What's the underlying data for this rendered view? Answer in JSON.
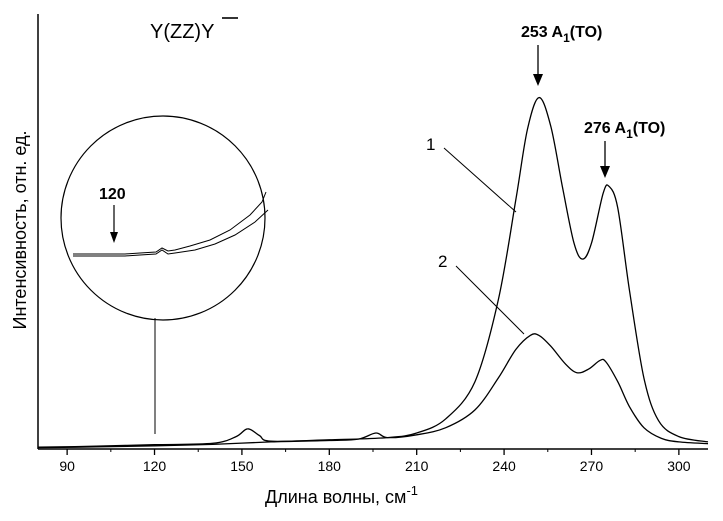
{
  "chart_data": {
    "type": "line",
    "title": "Y(ZZ)Y",
    "xlabel": "Длина волны, см",
    "xlabel_superscript": "-1",
    "ylabel": "Интенсивность, отн. ед.",
    "xlim": [
      80,
      310
    ],
    "ylim": [
      0,
      1
    ],
    "x_ticks": [
      90,
      120,
      150,
      180,
      210,
      240,
      270,
      300
    ],
    "y_ticks_labeled": false,
    "grid": false,
    "series": [
      {
        "name": "1",
        "points": [
          [
            80,
            0.005
          ],
          [
            100,
            0.008
          ],
          [
            120,
            0.012
          ],
          [
            140,
            0.016
          ],
          [
            148,
            0.035
          ],
          [
            152,
            0.057
          ],
          [
            156,
            0.038
          ],
          [
            160,
            0.022
          ],
          [
            180,
            0.026
          ],
          [
            200,
            0.032
          ],
          [
            210,
            0.045
          ],
          [
            220,
            0.085
          ],
          [
            230,
            0.19
          ],
          [
            238,
            0.42
          ],
          [
            244,
            0.7
          ],
          [
            248,
            0.9
          ],
          [
            252,
            0.99
          ],
          [
            256,
            0.91
          ],
          [
            260,
            0.74
          ],
          [
            264,
            0.58
          ],
          [
            267,
            0.535
          ],
          [
            270,
            0.58
          ],
          [
            274,
            0.72
          ],
          [
            276,
            0.74
          ],
          [
            279,
            0.68
          ],
          [
            283,
            0.45
          ],
          [
            288,
            0.2
          ],
          [
            293,
            0.08
          ],
          [
            300,
            0.035
          ],
          [
            310,
            0.02
          ]
        ]
      },
      {
        "name": "2",
        "points": [
          [
            80,
            0.004
          ],
          [
            100,
            0.006
          ],
          [
            120,
            0.009
          ],
          [
            140,
            0.013
          ],
          [
            160,
            0.02
          ],
          [
            180,
            0.024
          ],
          [
            190,
            0.028
          ],
          [
            196,
            0.045
          ],
          [
            200,
            0.032
          ],
          [
            210,
            0.04
          ],
          [
            220,
            0.06
          ],
          [
            230,
            0.11
          ],
          [
            238,
            0.2
          ],
          [
            244,
            0.28
          ],
          [
            249,
            0.32
          ],
          [
            252,
            0.32
          ],
          [
            256,
            0.29
          ],
          [
            261,
            0.24
          ],
          [
            265,
            0.215
          ],
          [
            269,
            0.225
          ],
          [
            273,
            0.25
          ],
          [
            275,
            0.245
          ],
          [
            279,
            0.19
          ],
          [
            283,
            0.12
          ],
          [
            288,
            0.06
          ],
          [
            294,
            0.03
          ],
          [
            300,
            0.02
          ],
          [
            310,
            0.015
          ]
        ]
      }
    ],
    "annotations": [
      {
        "text": "253 A",
        "sub": "1",
        "suffix": "(TO)",
        "x": 253
      },
      {
        "text": "276 A",
        "sub": "1",
        "suffix": "(TO)",
        "x": 276
      },
      {
        "text": "1",
        "target_series": "1"
      },
      {
        "text": "2",
        "target_series": "2"
      },
      {
        "text": "120",
        "x": 120,
        "note": "inset magnified region"
      }
    ]
  }
}
